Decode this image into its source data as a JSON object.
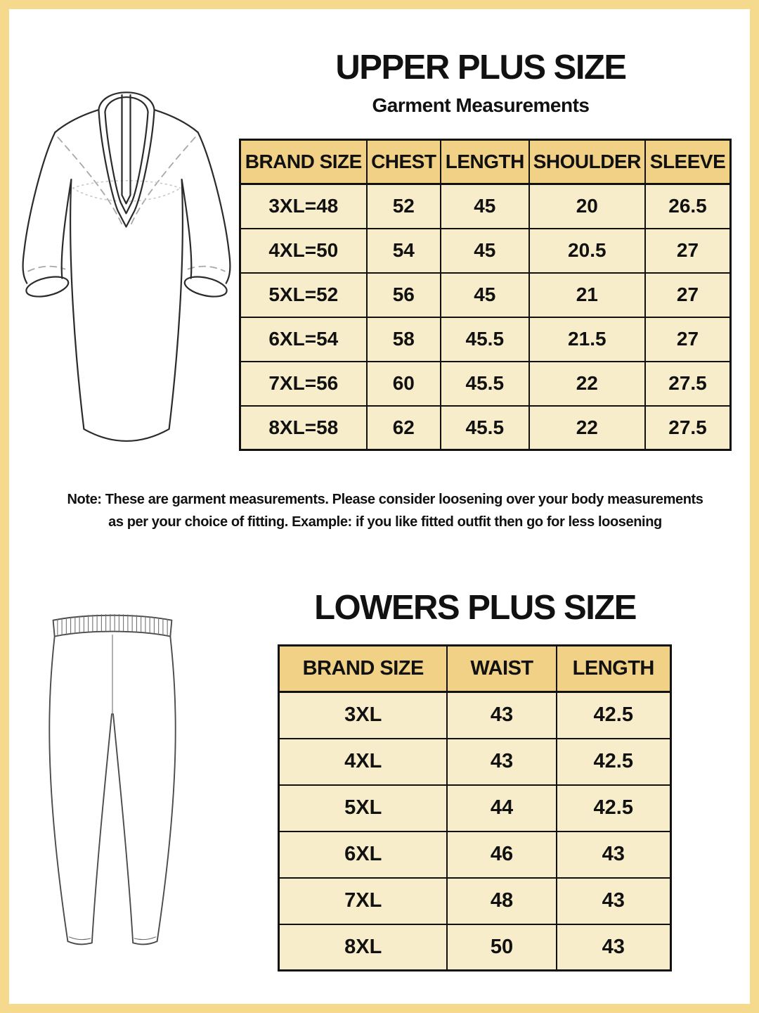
{
  "colors": {
    "frame": "#f5d98c",
    "header_bg": "#f0d185",
    "cell_bg": "#f8edca",
    "line": "#111111",
    "text": "#111111"
  },
  "upper": {
    "title": "UPPER PLUS SIZE",
    "subtitle": "Garment Measurements",
    "table": {
      "headers": [
        "BRAND SIZE",
        "CHEST",
        "LENGTH",
        "SHOULDER",
        "SLEEVE"
      ],
      "rows": [
        [
          "3XL=48",
          "52",
          "45",
          "20",
          "26.5"
        ],
        [
          "4XL=50",
          "54",
          "45",
          "20.5",
          "27"
        ],
        [
          "5XL=52",
          "56",
          "45",
          "21",
          "27"
        ],
        [
          "6XL=54",
          "58",
          "45.5",
          "21.5",
          "27"
        ],
        [
          "7XL=56",
          "60",
          "45.5",
          "22",
          "27.5"
        ],
        [
          "8XL=58",
          "62",
          "45.5",
          "22",
          "27.5"
        ]
      ]
    },
    "note_line1": "Note: These are garment measurements. Please consider loosening over your body measurements",
    "note_line2": "as per your choice of fitting. Example: if you like fitted outfit then go for less loosening"
  },
  "lowers": {
    "title": "LOWERS PLUS SIZE",
    "table": {
      "headers": [
        "BRAND SIZE",
        "WAIST",
        "LENGTH"
      ],
      "rows": [
        [
          "3XL",
          "43",
          "42.5"
        ],
        [
          "4XL",
          "43",
          "42.5"
        ],
        [
          "5XL",
          "44",
          "42.5"
        ],
        [
          "6XL",
          "46",
          "43"
        ],
        [
          "7XL",
          "48",
          "43"
        ],
        [
          "8XL",
          "50",
          "43"
        ]
      ]
    }
  }
}
